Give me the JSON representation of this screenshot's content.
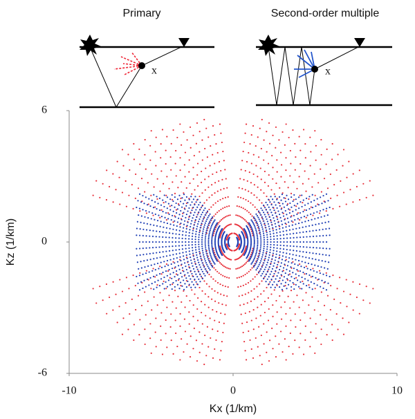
{
  "chart_data": {
    "type": "scatter",
    "xlabel": "Kx (1/km)",
    "ylabel": "Kz (1/km)",
    "xlim": [
      -10,
      10
    ],
    "ylim": [
      -6,
      6
    ],
    "xticks": [
      -10,
      0,
      10
    ],
    "yticks": [
      -6,
      0,
      6
    ],
    "panels": [
      {
        "title": "Primary",
        "point_label": "x"
      },
      {
        "title": "Second-order multiple",
        "point_label": "x"
      }
    ]
  }
}
